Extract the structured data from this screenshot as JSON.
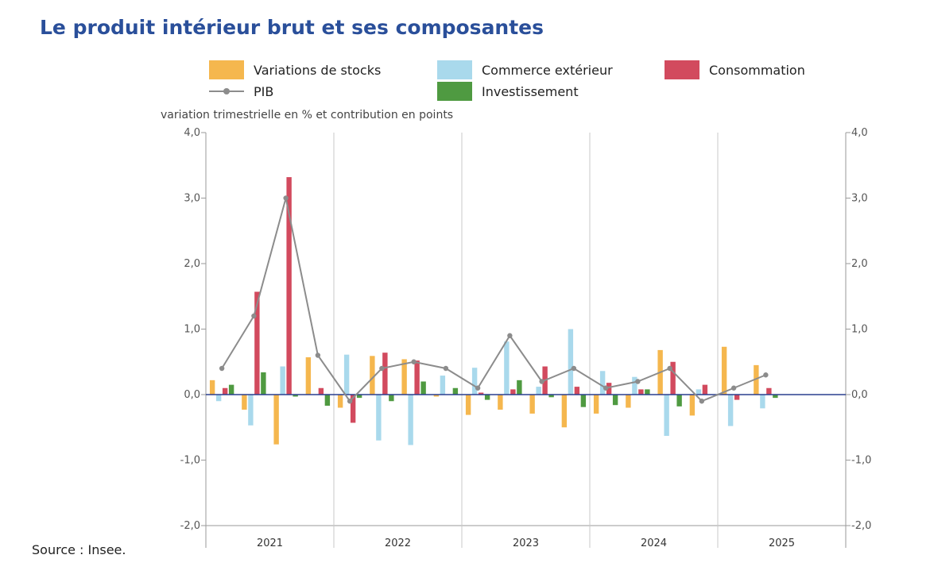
{
  "title": "Le produit intérieur brut et ses composantes",
  "unit_label": "variation trimestrielle en % et contribution en points",
  "source": "Source : Insee.",
  "legend": [
    {
      "label": "Variations de stocks",
      "color": "#f5b74e",
      "kind": "bar"
    },
    {
      "label": "Commerce extérieur",
      "color": "#a9d9ec",
      "kind": "bar"
    },
    {
      "label": "Consommation",
      "color": "#d24a5e",
      "kind": "bar"
    },
    {
      "label": "PIB",
      "color": "#8c8c8c",
      "kind": "line"
    },
    {
      "label": "Investissement",
      "color": "#4f9a41",
      "kind": "bar"
    }
  ],
  "chart_data": {
    "type": "bar",
    "ylim": [
      -2,
      4
    ],
    "y_ticks": [
      "-2,0",
      "-1,0",
      "0,0",
      "1,0",
      "2,0",
      "3,0",
      "4,0"
    ],
    "grid": "vertical separators between years",
    "years": [
      "2021",
      "2022",
      "2023",
      "2024",
      "2025"
    ],
    "quarters_per_year": 4,
    "n_quarters": 18,
    "series": [
      {
        "name": "Variations de stocks",
        "type": "bar",
        "color": "#f5b74e",
        "values": [
          0.22,
          -0.23,
          -0.76,
          0.57,
          -0.2,
          0.59,
          0.54,
          -0.03,
          -0.31,
          -0.23,
          -0.29,
          -0.5,
          -0.29,
          -0.2,
          0.68,
          -0.32,
          0.73,
          0.45
        ]
      },
      {
        "name": "Commerce extérieur",
        "type": "bar",
        "color": "#a9d9ec",
        "values": [
          -0.1,
          -0.47,
          0.43,
          0.0,
          0.61,
          -0.7,
          -0.77,
          0.29,
          0.41,
          0.81,
          0.12,
          1.0,
          0.36,
          0.27,
          -0.63,
          0.08,
          -0.48,
          -0.21
        ]
      },
      {
        "name": "Consommation",
        "type": "bar",
        "color": "#d24a5e",
        "values": [
          0.1,
          1.57,
          3.32,
          0.1,
          -0.43,
          0.64,
          0.52,
          0.0,
          0.03,
          0.08,
          0.43,
          0.12,
          0.18,
          0.08,
          0.5,
          0.15,
          -0.08,
          0.1
        ]
      },
      {
        "name": "Investissement",
        "type": "bar",
        "color": "#4f9a41",
        "values": [
          0.15,
          0.34,
          -0.03,
          -0.17,
          -0.05,
          -0.1,
          0.2,
          0.1,
          -0.08,
          0.22,
          -0.04,
          -0.19,
          -0.16,
          0.08,
          -0.18,
          0.0,
          0.0,
          -0.05
        ]
      },
      {
        "name": "PIB",
        "type": "line",
        "color": "#8c8c8c",
        "values": [
          0.4,
          1.2,
          3.0,
          0.6,
          -0.1,
          0.4,
          0.5,
          0.4,
          0.1,
          0.9,
          0.2,
          0.4,
          0.1,
          0.2,
          0.4,
          -0.1,
          0.1,
          0.3
        ]
      }
    ]
  }
}
